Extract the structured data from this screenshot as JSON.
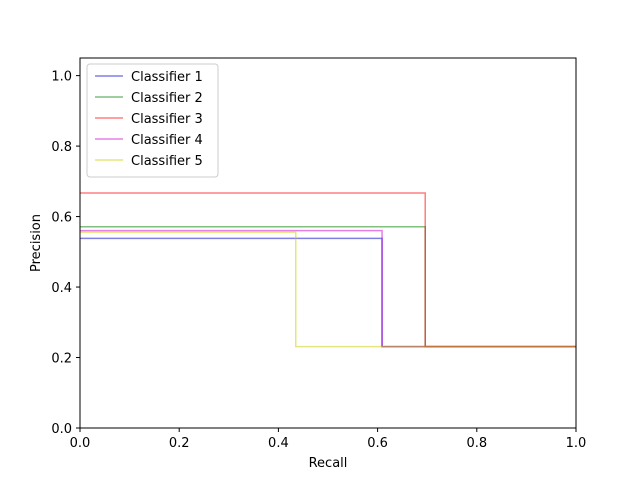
{
  "chart_data": {
    "type": "line",
    "step": true,
    "title": "",
    "xlabel": "Recall",
    "ylabel": "Precision",
    "xlim": [
      0.0,
      1.0
    ],
    "ylim": [
      0.0,
      1.05
    ],
    "x_ticks": [
      0.0,
      0.2,
      0.4,
      0.6,
      0.8,
      1.0
    ],
    "y_ticks": [
      0.0,
      0.2,
      0.4,
      0.6,
      0.8,
      1.0
    ],
    "x_tick_labels": [
      "0.0",
      "0.2",
      "0.4",
      "0.6",
      "0.8",
      "1.0"
    ],
    "y_tick_labels": [
      "0.0",
      "0.2",
      "0.4",
      "0.6",
      "0.8",
      "1.0"
    ],
    "grid": false,
    "legend_position": "top-left",
    "series": [
      {
        "name": "Classifier 1",
        "color": "#0000cc",
        "recall": [
          0.0,
          0.609,
          0.609,
          1.0
        ],
        "precision": [
          0.538,
          0.538,
          0.231,
          0.231
        ]
      },
      {
        "name": "Classifier 2",
        "color": "#008000",
        "recall": [
          0.0,
          0.696,
          0.696,
          1.0
        ],
        "precision": [
          0.571,
          0.571,
          0.231,
          0.231
        ]
      },
      {
        "name": "Classifier 3",
        "color": "#ff0000",
        "recall": [
          0.0,
          0.696,
          0.696,
          1.0
        ],
        "precision": [
          0.667,
          0.667,
          0.231,
          0.231
        ]
      },
      {
        "name": "Classifier 4",
        "color": "#cc00cc",
        "recall": [
          0.0,
          0.609,
          0.609,
          1.0
        ],
        "precision": [
          0.56,
          0.56,
          0.231,
          0.231
        ]
      },
      {
        "name": "Classifier 5",
        "color": "#cccc00",
        "recall": [
          0.0,
          0.435,
          0.435,
          1.0
        ],
        "precision": [
          0.556,
          0.556,
          0.231,
          0.231
        ]
      }
    ]
  }
}
